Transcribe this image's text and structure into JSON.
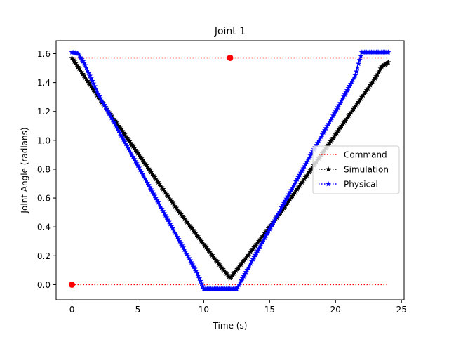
{
  "chart_data": {
    "type": "line",
    "title": "Joint 1",
    "xlabel": "Time (s)",
    "ylabel": "Joint Angle (radians)",
    "xlim": [
      -1.2,
      25.2
    ],
    "ylim": [
      -0.105,
      1.69
    ],
    "xticks": [
      0,
      5,
      10,
      15,
      20,
      25
    ],
    "yticks": [
      0.0,
      0.2,
      0.4,
      0.6,
      0.8,
      1.0,
      1.2,
      1.4,
      1.6
    ],
    "xtick_labels": [
      "0",
      "5",
      "10",
      "15",
      "20",
      "25"
    ],
    "ytick_labels": [
      "0.0",
      "0.2",
      "0.4",
      "0.6",
      "0.8",
      "1.0",
      "1.2",
      "1.4",
      "1.6"
    ],
    "grid": false,
    "legend": "center-right",
    "series": [
      {
        "name": "Command",
        "color": "#ff0000",
        "linestyle": "dotted",
        "marker": "circle",
        "lines": [
          {
            "x": [
              0,
              24
            ],
            "y": [
              1.571,
              1.571
            ]
          },
          {
            "x": [
              0,
              24
            ],
            "y": [
              0.0,
              0.0
            ]
          }
        ],
        "markers": [
          {
            "x": 0,
            "y": 0.0
          },
          {
            "x": 12,
            "y": 1.571
          }
        ]
      },
      {
        "name": "Simulation",
        "color": "#000000",
        "linestyle": "dotted",
        "marker": "star",
        "x": [
          0,
          2,
          4,
          6,
          8,
          10,
          11,
          12,
          13,
          14,
          16,
          18,
          20,
          22,
          23,
          23.5,
          24
        ],
        "y": [
          1.57,
          1.3,
          1.04,
          0.78,
          0.52,
          0.28,
          0.16,
          0.045,
          0.16,
          0.28,
          0.52,
          0.78,
          1.04,
          1.3,
          1.43,
          1.51,
          1.54
        ]
      },
      {
        "name": "Physical",
        "color": "#0000ff",
        "linestyle": "dotted",
        "marker": "star",
        "x": [
          0,
          0.5,
          1,
          2,
          4,
          6,
          8,
          9.5,
          10,
          12.5,
          14,
          16,
          18,
          20,
          21.5,
          22,
          24
        ],
        "y": [
          1.61,
          1.6,
          1.52,
          1.32,
          0.99,
          0.66,
          0.33,
          0.08,
          -0.03,
          -0.03,
          0.22,
          0.55,
          0.88,
          1.2,
          1.45,
          1.61,
          1.61
        ]
      }
    ]
  }
}
